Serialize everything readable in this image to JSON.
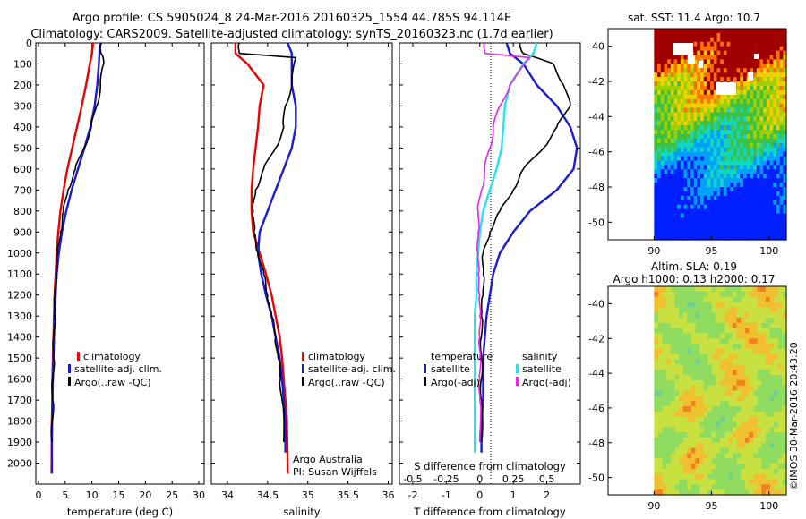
{
  "header": {
    "line1": "Argo profile: CS 5905024_8 24-Mar-2016 20160325_1554 44.785S 94.114E",
    "line2": "Climatology: CARS2009. Satellite-adjusted climatology: synTS_20160323.nc (1.7d earlier)"
  },
  "colors": {
    "climatology": "#ee0000",
    "satellite": "#1a1add",
    "argo": "#000000",
    "satellite_salinity": "#22e5ee",
    "argo_salinity_adj": "#ee22ee"
  },
  "chart_data": [
    {
      "id": "temperature",
      "type": "line",
      "xlabel": "temperature (deg C)",
      "ylabel": "",
      "xlim": [
        -0.5,
        31
      ],
      "ylim": [
        0,
        2100
      ],
      "y_reversed": true,
      "xticks": [
        0,
        5,
        10,
        15,
        20,
        25,
        30
      ],
      "yticks": [
        0,
        100,
        200,
        300,
        400,
        500,
        600,
        700,
        800,
        900,
        1000,
        1100,
        1200,
        1300,
        1400,
        1500,
        1600,
        1700,
        1800,
        1900,
        2000
      ],
      "legend": [
        "climatology",
        "satellite-adj. clim.",
        "Argo(..raw -QC)"
      ],
      "series": [
        {
          "name": "climatology",
          "color": "#ee0000",
          "x": [
            10.2,
            10.0,
            9.6,
            8.9,
            8.1,
            7.2,
            6.3,
            5.4,
            4.7,
            4.1,
            3.7,
            3.4,
            3.2,
            3.0,
            2.9,
            2.8,
            2.7,
            2.6,
            2.6,
            2.5,
            2.5,
            2.45
          ],
          "y": [
            0,
            50,
            100,
            200,
            300,
            400,
            500,
            600,
            700,
            800,
            900,
            1000,
            1100,
            1200,
            1300,
            1400,
            1500,
            1600,
            1700,
            1800,
            1900,
            2050
          ]
        },
        {
          "name": "satellite-adj. clim.",
          "color": "#1a1add",
          "x": [
            11.5,
            11.4,
            11.3,
            11.0,
            10.5,
            9.7,
            8.6,
            7.4,
            6.2,
            5.2,
            4.4,
            3.8,
            3.4,
            3.2,
            3.0,
            2.9,
            2.8,
            2.7,
            2.6,
            2.55,
            2.5,
            2.5
          ],
          "y": [
            0,
            50,
            100,
            200,
            300,
            400,
            500,
            600,
            700,
            800,
            900,
            1000,
            1100,
            1200,
            1300,
            1400,
            1500,
            1600,
            1700,
            1800,
            1900,
            2050
          ]
        },
        {
          "name": "Argo(..raw -QC)",
          "color": "#000000",
          "x": [
            11.8,
            11.7,
            12.2,
            11.6,
            10.9,
            9.9,
            8.5,
            6.9,
            5.5,
            4.7,
            4.1,
            3.6,
            3.3,
            3.1,
            3.0,
            2.9,
            2.8,
            2.7,
            2.65,
            2.6,
            2.55
          ],
          "y": [
            0,
            50,
            100,
            200,
            300,
            400,
            500,
            600,
            700,
            800,
            900,
            1000,
            1100,
            1200,
            1300,
            1400,
            1500,
            1600,
            1700,
            1800,
            1900
          ]
        }
      ]
    },
    {
      "id": "salinity",
      "type": "line",
      "xlabel": "salinity",
      "ylabel": "",
      "xlim": [
        33.8,
        36.05
      ],
      "ylim": [
        0,
        2100
      ],
      "y_reversed": true,
      "xticks": [
        34,
        34.5,
        35,
        35.5,
        36
      ],
      "legend": [
        "climatology",
        "satellite-adj. clim.",
        "Argo(..raw -QC)"
      ],
      "series": [
        {
          "name": "climatology",
          "color": "#ee0000",
          "x": [
            34.1,
            34.1,
            34.25,
            34.45,
            34.4,
            34.38,
            34.35,
            34.32,
            34.3,
            34.3,
            34.32,
            34.4,
            34.48,
            34.55,
            34.6,
            34.65,
            34.68,
            34.7,
            34.72,
            34.74,
            34.75
          ],
          "y": [
            0,
            50,
            100,
            200,
            300,
            400,
            500,
            600,
            700,
            800,
            900,
            1000,
            1100,
            1200,
            1300,
            1400,
            1500,
            1600,
            1700,
            1800,
            2050
          ]
        },
        {
          "name": "satellite-adj. clim.",
          "color": "#1a1add",
          "x": [
            34.75,
            34.8,
            34.8,
            34.8,
            34.85,
            34.85,
            34.8,
            34.7,
            34.6,
            34.5,
            34.4,
            34.38,
            34.42,
            34.48,
            34.55,
            34.6,
            34.65,
            34.68,
            34.7,
            34.72,
            34.72
          ],
          "y": [
            0,
            50,
            100,
            200,
            300,
            400,
            500,
            600,
            700,
            800,
            900,
            1000,
            1100,
            1200,
            1300,
            1400,
            1500,
            1600,
            1700,
            1800,
            1950
          ]
        },
        {
          "name": "Argo(..raw -QC)",
          "color": "#000000",
          "x": [
            34.15,
            34.15,
            34.85,
            34.8,
            34.72,
            34.7,
            34.6,
            34.45,
            34.35,
            34.32,
            34.33,
            34.38,
            34.45,
            34.5,
            34.55,
            34.6,
            34.63,
            34.66,
            34.68,
            34.7
          ],
          "y": [
            0,
            50,
            70,
            200,
            300,
            400,
            500,
            600,
            700,
            800,
            900,
            1000,
            1100,
            1200,
            1300,
            1400,
            1500,
            1600,
            1700,
            1900
          ]
        }
      ],
      "annotation": [
        "Argo Australia",
        "PI: Susan Wijffels"
      ]
    },
    {
      "id": "difference",
      "type": "line",
      "xlabel": "T difference from climatology",
      "secondary_xlabel": "S difference from climatology",
      "xlim": [
        -2.4,
        3.0
      ],
      "ylim": [
        0,
        2100
      ],
      "y_reversed": true,
      "xticks": [
        -2,
        -1,
        0,
        1,
        2
      ],
      "secondary_xticks": [
        "-0.5",
        "-0.25",
        "0",
        "0.25",
        "0.5"
      ],
      "legend_titles": [
        "temperature",
        "salinity"
      ],
      "legend": [
        "satellite",
        "Argo(-adj)",
        "satellite",
        "Argo(-adj)"
      ],
      "series": [
        {
          "name": "satellite",
          "group": "temperature",
          "color": "#1a1add",
          "x": [
            0.8,
            0.9,
            1.3,
            1.7,
            2.3,
            2.7,
            2.9,
            2.8,
            2.3,
            1.5,
            1.0,
            0.6,
            0.4,
            0.3,
            0.2,
            0.15,
            0.1,
            0.1,
            0.1,
            0.05,
            0.05
          ],
          "y": [
            0,
            50,
            100,
            200,
            300,
            400,
            500,
            600,
            700,
            800,
            900,
            1000,
            1100,
            1200,
            1300,
            1400,
            1500,
            1600,
            1700,
            1800,
            1950
          ]
        },
        {
          "name": "Argo(-adj)",
          "group": "temperature",
          "color": "#000000",
          "x": [
            1.2,
            1.3,
            2.2,
            2.5,
            2.7,
            2.3,
            1.9,
            1.3,
            1.0,
            0.6,
            0.3,
            0.1,
            0.1,
            0.1,
            0.05,
            0.05,
            0.05,
            0.05,
            0.05,
            0.05
          ],
          "y": [
            0,
            50,
            100,
            200,
            300,
            400,
            500,
            600,
            700,
            800,
            900,
            1000,
            1100,
            1200,
            1300,
            1400,
            1500,
            1600,
            1700,
            1900
          ]
        },
        {
          "name": "satellite",
          "group": "salinity",
          "color": "#22e5ee",
          "x": [
            1.7,
            1.6,
            1.3,
            0.9,
            0.75,
            0.7,
            0.65,
            0.5,
            0.3,
            0.1,
            0.0,
            -0.05,
            -0.1,
            -0.1,
            -0.15,
            -0.15,
            -0.15,
            -0.15,
            -0.15,
            -0.15,
            -0.15
          ],
          "y": [
            0,
            50,
            100,
            200,
            300,
            400,
            500,
            600,
            700,
            800,
            900,
            1000,
            1100,
            1200,
            1300,
            1400,
            1500,
            1600,
            1700,
            1800,
            1950
          ]
        },
        {
          "name": "Argo(-adj)",
          "group": "salinity",
          "color": "#ee22ee",
          "x": [
            0.15,
            0.15,
            1.5,
            0.9,
            0.6,
            0.4,
            0.3,
            0.15,
            0.05,
            -0.05,
            -0.05,
            -0.05,
            -0.05,
            0.0,
            0.0,
            0.0,
            0.0,
            0.0,
            0.0,
            0.0
          ],
          "y": [
            0,
            50,
            70,
            200,
            300,
            400,
            500,
            600,
            700,
            800,
            900,
            1000,
            1100,
            1200,
            1300,
            1400,
            1500,
            1600,
            1700,
            1900
          ]
        }
      ]
    },
    {
      "id": "sst_map",
      "type": "heatmap",
      "title": "sat. SST: 11.4 Argo: 10.7",
      "xticks": [
        90,
        95,
        100
      ],
      "yticks": [
        -40,
        -42,
        -44,
        -46,
        -48,
        -50
      ],
      "xlim": [
        86,
        101.5
      ],
      "ylim": [
        -51,
        -39
      ],
      "data_extent_x": [
        90,
        101.5
      ]
    },
    {
      "id": "sla_map",
      "type": "heatmap",
      "title": "Altim. SLA: 0.19",
      "subtitle": "Argo h1000: 0.13 h2000: 0.17",
      "xticks": [
        90,
        95,
        100
      ],
      "yticks": [
        -40,
        -42,
        -44,
        -46,
        -48,
        -50
      ],
      "xlim": [
        86,
        101.5
      ],
      "ylim": [
        -51,
        -39
      ],
      "data_extent_x": [
        90,
        101.5
      ]
    }
  ],
  "footer": {
    "stamp": "©IMOS 30-Mar-2016 20:43:20"
  }
}
